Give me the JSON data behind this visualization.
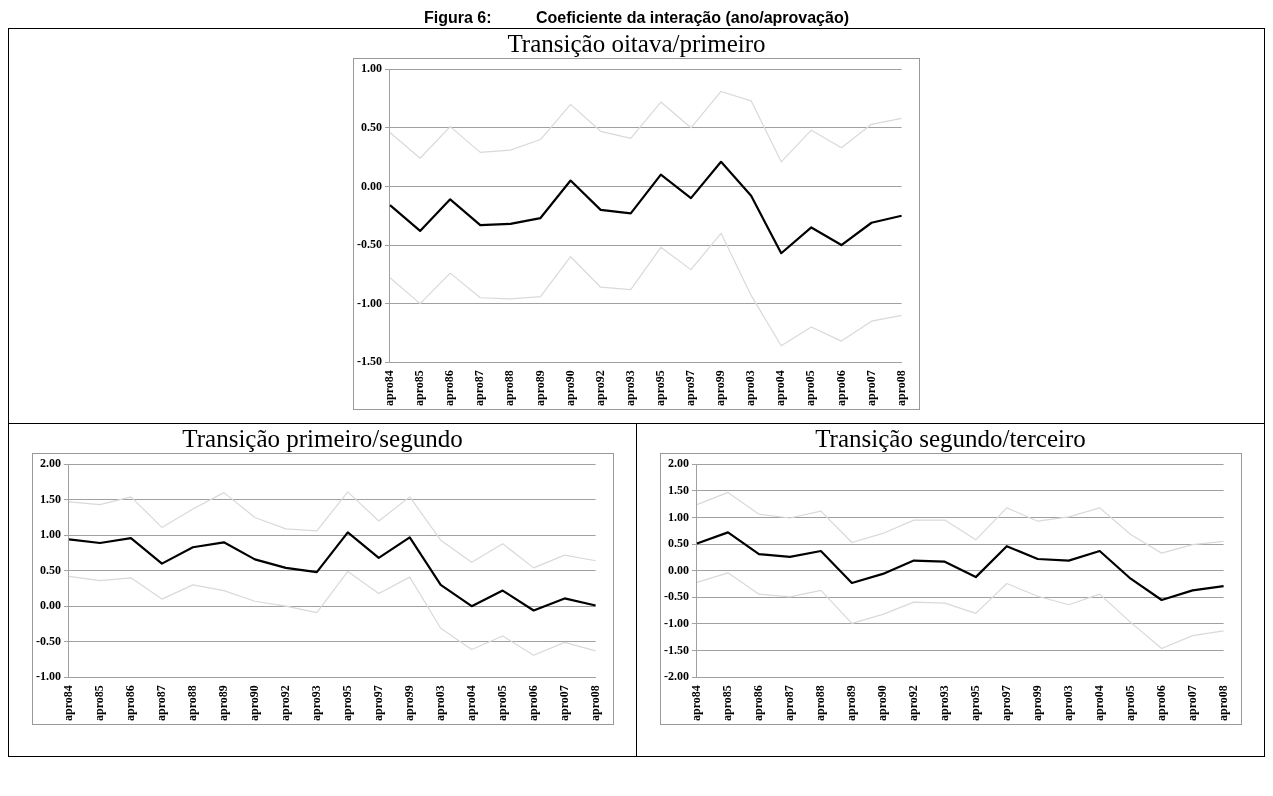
{
  "chart_data": [
    {
      "type": "line",
      "title": "Transição oitava/primeiro",
      "annotations": [
        "Figura 6:          Coeficiente da interação (ano/aprovação)"
      ],
      "categories": [
        "apro84",
        "apro85",
        "apro86",
        "apro87",
        "apro88",
        "apro89",
        "apro90",
        "apro92",
        "apro93",
        "apro95",
        "apro97",
        "apro99",
        "apro03",
        "apro04",
        "apro05",
        "apro06",
        "apro07",
        "apro08"
      ],
      "series": [
        {
          "color": "#d9d9d9",
          "values": [
            0.46,
            0.24,
            0.51,
            0.29,
            0.31,
            0.4,
            0.7,
            0.47,
            0.41,
            0.72,
            0.5,
            0.81,
            0.73,
            0.21,
            0.48,
            0.33,
            0.53,
            0.58
          ]
        },
        {
          "color": "#000000",
          "values": [
            -0.16,
            -0.38,
            -0.11,
            -0.33,
            -0.32,
            -0.27,
            0.05,
            -0.2,
            -0.23,
            0.1,
            -0.1,
            0.21,
            -0.08,
            -0.57,
            -0.35,
            -0.5,
            -0.31,
            -0.25
          ]
        },
        {
          "color": "#d9d9d9",
          "values": [
            -0.78,
            -1.0,
            -0.74,
            -0.95,
            -0.96,
            -0.94,
            -0.6,
            -0.86,
            -0.88,
            -0.52,
            -0.71,
            -0.4,
            -0.93,
            -1.36,
            -1.2,
            -1.32,
            -1.15,
            -1.1
          ]
        }
      ],
      "ylim": [
        -1.5,
        1
      ],
      "yticks": [
        {
          "value": -1.5,
          "label": "-1.50"
        },
        {
          "value": -1,
          "label": "-1.00"
        },
        {
          "value": -0.5,
          "label": "-0.50"
        },
        {
          "value": 0,
          "label": "0.00"
        },
        {
          "value": 0.5,
          "label": "0.50"
        },
        {
          "value": 1,
          "label": "1.00"
        }
      ],
      "grid": "y",
      "legend": false,
      "marker": "none",
      "line_style": "solid"
    },
    {
      "type": "line",
      "title": "Transição primeiro/segundo",
      "categories": [
        "apro84",
        "apro85",
        "apro86",
        "apro87",
        "apro88",
        "apro89",
        "apro90",
        "apro92",
        "apro93",
        "apro95",
        "apro97",
        "apro99",
        "apro03",
        "apro04",
        "apro05",
        "apro06",
        "apro07",
        "apro08"
      ],
      "series": [
        {
          "color": "#d9d9d9",
          "values": [
            1.47,
            1.43,
            1.54,
            1.11,
            1.37,
            1.6,
            1.25,
            1.09,
            1.06,
            1.61,
            1.2,
            1.54,
            0.93,
            0.62,
            0.88,
            0.54,
            0.72,
            0.64
          ]
        },
        {
          "color": "#000000",
          "values": [
            0.94,
            0.89,
            0.96,
            0.6,
            0.83,
            0.9,
            0.66,
            0.54,
            0.48,
            1.04,
            0.68,
            0.97,
            0.3,
            0.0,
            0.22,
            -0.06,
            0.11,
            0.01
          ]
        },
        {
          "color": "#d9d9d9",
          "values": [
            0.42,
            0.36,
            0.4,
            0.1,
            0.3,
            0.22,
            0.07,
            0.0,
            -0.09,
            0.49,
            0.18,
            0.41,
            -0.31,
            -0.61,
            -0.42,
            -0.69,
            -0.51,
            -0.63
          ]
        }
      ],
      "ylim": [
        -1,
        2
      ],
      "yticks": [
        {
          "value": -1,
          "label": "-1.00"
        },
        {
          "value": -0.5,
          "label": "-0.50"
        },
        {
          "value": 0,
          "label": "0.00"
        },
        {
          "value": 0.5,
          "label": "0.50"
        },
        {
          "value": 1,
          "label": "1.00"
        },
        {
          "value": 1.5,
          "label": "1.50"
        },
        {
          "value": 2,
          "label": "2.00"
        }
      ],
      "grid": "y",
      "legend": false,
      "marker": "none",
      "line_style": "solid"
    },
    {
      "type": "line",
      "title": "Transição segundo/terceiro",
      "categories": [
        "apro84",
        "apro85",
        "apro86",
        "apro87",
        "apro88",
        "apro89",
        "apro90",
        "apro92",
        "apro93",
        "apro95",
        "apro97",
        "apro99",
        "apro03",
        "apro04",
        "apro05",
        "apro06",
        "apro07",
        "apro08"
      ],
      "series": [
        {
          "color": "#d9d9d9",
          "values": [
            1.24,
            1.47,
            1.06,
            0.99,
            1.12,
            0.53,
            0.7,
            0.95,
            0.95,
            0.58,
            1.18,
            0.93,
            1.01,
            1.18,
            0.68,
            0.33,
            0.49,
            0.55
          ]
        },
        {
          "color": "#000000",
          "values": [
            0.51,
            0.72,
            0.31,
            0.26,
            0.37,
            -0.23,
            -0.06,
            0.19,
            0.17,
            -0.12,
            0.46,
            0.22,
            0.19,
            0.37,
            -0.15,
            -0.55,
            -0.37,
            -0.29
          ]
        },
        {
          "color": "#d9d9d9",
          "values": [
            -0.22,
            -0.04,
            -0.44,
            -0.49,
            -0.37,
            -0.99,
            -0.82,
            -0.59,
            -0.61,
            -0.8,
            -0.24,
            -0.48,
            -0.64,
            -0.44,
            -0.97,
            -1.46,
            -1.22,
            -1.13
          ]
        }
      ],
      "ylim": [
        -2,
        2
      ],
      "yticks": [
        {
          "value": -2,
          "label": "-2.00"
        },
        {
          "value": -1.5,
          "label": "-1.50"
        },
        {
          "value": -1,
          "label": "-1.00"
        },
        {
          "value": -0.5,
          "label": "-0.50"
        },
        {
          "value": 0,
          "label": "0.00"
        },
        {
          "value": 0.5,
          "label": "0.50"
        },
        {
          "value": 1,
          "label": "1.00"
        },
        {
          "value": 1.5,
          "label": "1.50"
        },
        {
          "value": 2,
          "label": "2.00"
        }
      ],
      "grid": "y",
      "legend": false,
      "marker": "none",
      "line_style": "solid"
    }
  ]
}
